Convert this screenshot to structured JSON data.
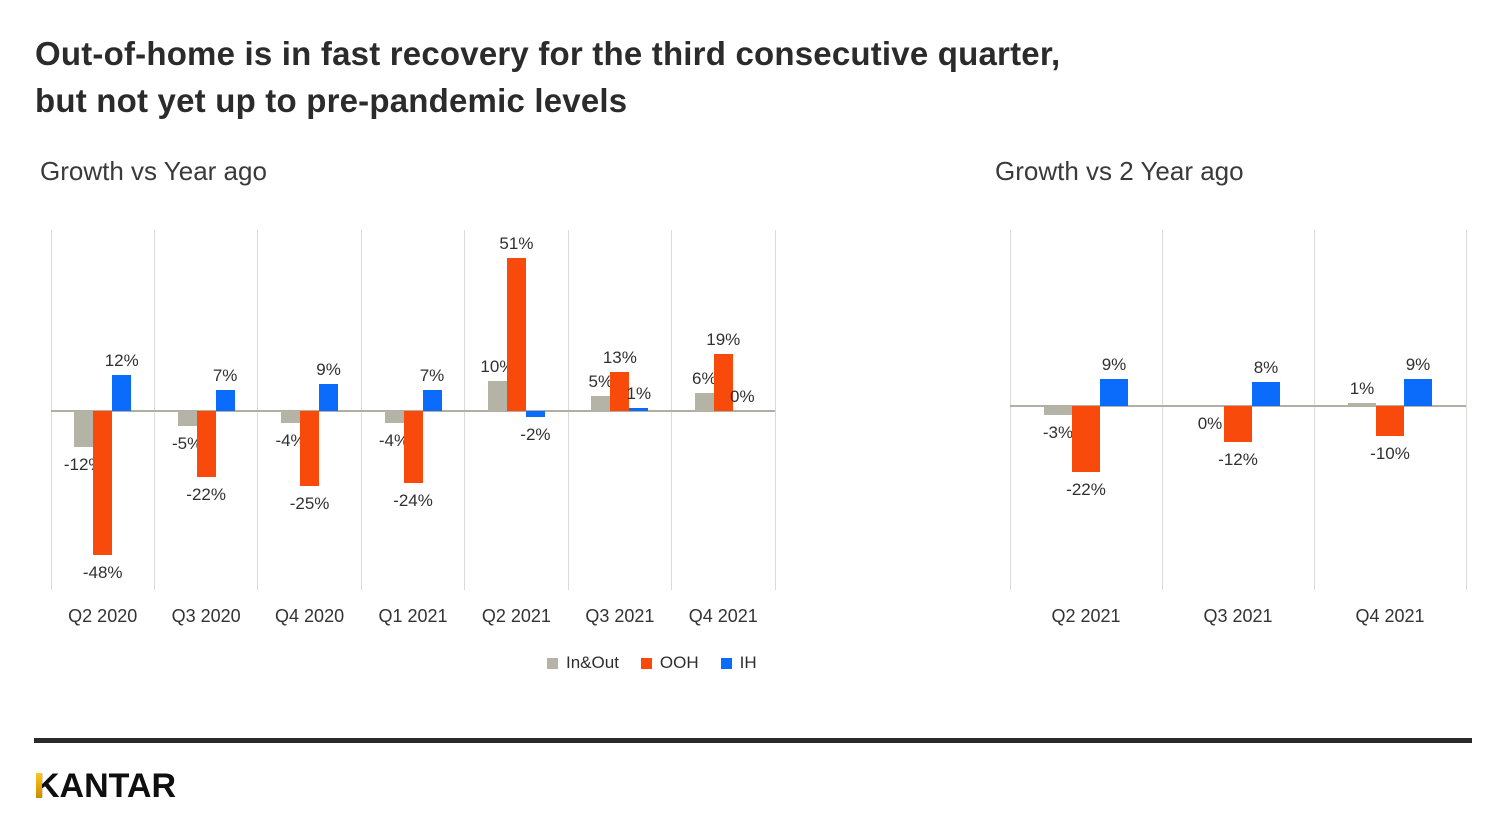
{
  "title": {
    "line1": "Out-of-home is in fast recovery for the third consecutive quarter,",
    "line2": "but not yet up to pre-pandemic levels"
  },
  "chart_data": [
    {
      "type": "bar",
      "title": "Growth vs Year ago",
      "unit": "%",
      "categories": [
        "Q2 2020",
        "Q3 2020",
        "Q4 2020",
        "Q1 2021",
        "Q2 2021",
        "Q3 2021",
        "Q4 2021"
      ],
      "series": [
        {
          "name": "In&Out",
          "color": "#b5b3a6",
          "values": [
            -12,
            -5,
            -4,
            -4,
            10,
            5,
            6
          ]
        },
        {
          "name": "OOH",
          "color": "#f84b0b",
          "values": [
            -48,
            -22,
            -25,
            -24,
            51,
            13,
            19
          ]
        },
        {
          "name": "IH",
          "color": "#0b6cfb",
          "values": [
            12,
            7,
            9,
            7,
            -2,
            1,
            0
          ]
        }
      ],
      "data_labels": true,
      "gridlines": "vertical-only",
      "ylim": [
        -60,
        62
      ],
      "legend_position": "bottom"
    },
    {
      "type": "bar",
      "title": "Growth vs 2 Year ago",
      "unit": "%",
      "categories": [
        "Q2 2021",
        "Q3 2021",
        "Q4 2021"
      ],
      "series": [
        {
          "name": "In&Out",
          "color": "#b5b3a6",
          "values": [
            -3,
            0,
            1
          ]
        },
        {
          "name": "OOH",
          "color": "#f84b0b",
          "values": [
            -22,
            -12,
            -10
          ]
        },
        {
          "name": "IH",
          "color": "#0b6cfb",
          "values": [
            9,
            8,
            9
          ]
        }
      ],
      "data_labels": true,
      "gridlines": "vertical-only",
      "ylim": [
        -60,
        62
      ],
      "legend_position": "none"
    }
  ],
  "legend": {
    "items": [
      {
        "label": "In&Out",
        "color": "#b5b3a6"
      },
      {
        "label": "OOH",
        "color": "#f84b0b"
      },
      {
        "label": "IH",
        "color": "#0b6cfb"
      }
    ]
  },
  "logo": {
    "text": "KANTAR"
  },
  "colors": {
    "background": "#ffffff",
    "title_text": "#2b2b2b",
    "label_text": "#303030",
    "gridline": "#d9d9d9",
    "zero_line": "#b1afa3",
    "footer_rule": "#2a2a2a",
    "logo_gold": "#e5a60a"
  }
}
